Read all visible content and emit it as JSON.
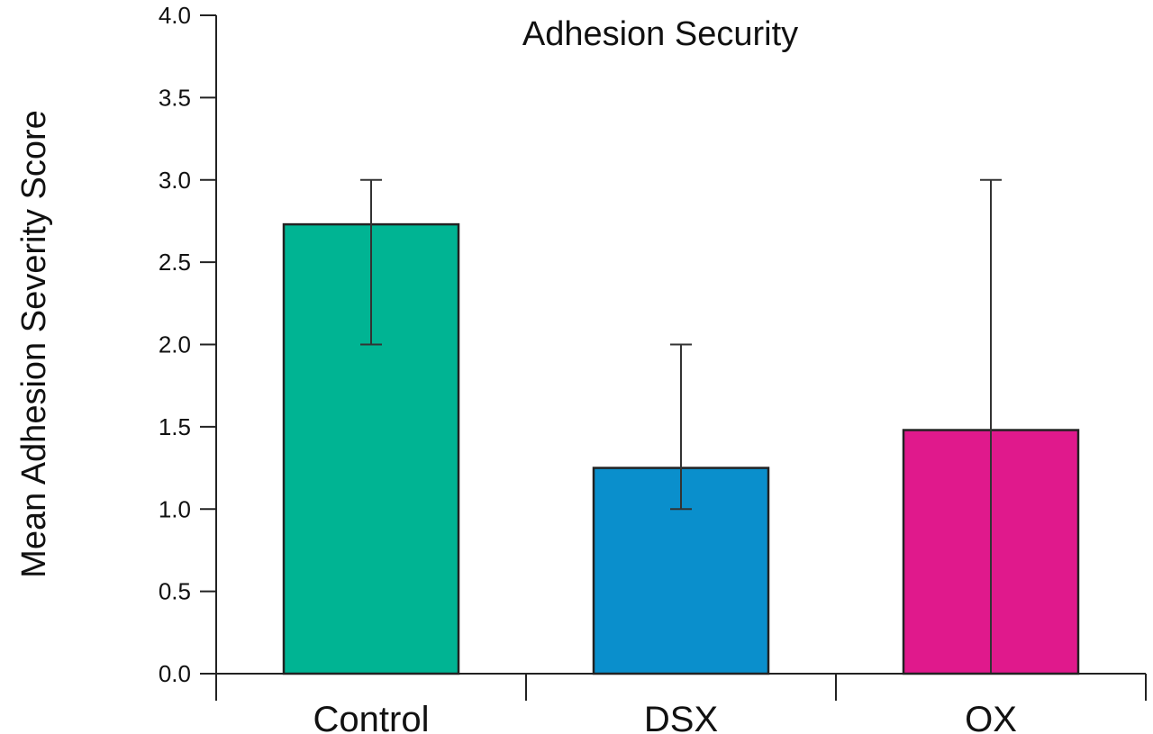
{
  "chart_data": {
    "type": "bar",
    "title": "Adhesion Security",
    "xlabel": "",
    "ylabel": "Mean Adhesion Severity Score",
    "categories": [
      "Control",
      "DSX",
      "OX"
    ],
    "values": [
      2.73,
      1.25,
      1.48
    ],
    "error_low": [
      2.0,
      1.0,
      0.0
    ],
    "error_high": [
      3.0,
      2.0,
      3.0
    ],
    "colors": [
      "#00b493",
      "#0a8fcc",
      "#e0198c"
    ],
    "ylim": [
      0,
      4
    ],
    "yticks": [
      "0.0",
      "0.5",
      "1.0",
      "1.5",
      "2.0",
      "2.5",
      "3.0",
      "3.5",
      "4.0"
    ],
    "grid": false,
    "legend": "none"
  }
}
